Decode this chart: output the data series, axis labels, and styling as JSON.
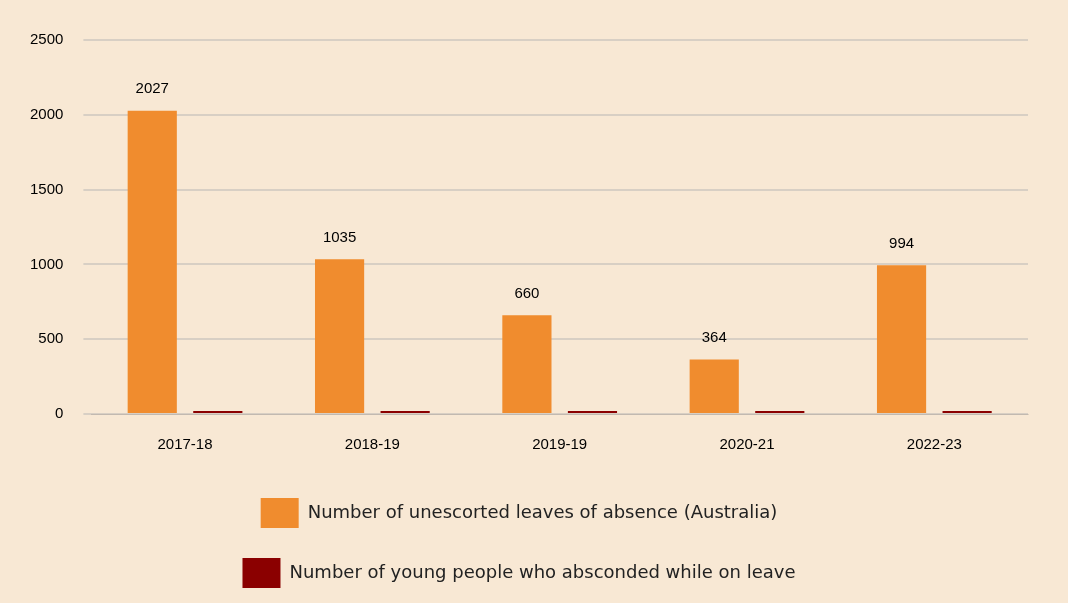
{
  "chart_data": {
    "type": "bar",
    "categories": [
      "2017-18",
      "2018-19",
      "2019-19",
      "2020-21",
      "2022-23"
    ],
    "series": [
      {
        "name": "Number of unescorted leaves of absence (Australia)",
        "color": "#f08c2e",
        "values": [
          2027,
          1035,
          660,
          364,
          994
        ],
        "value_labels": [
          "2027",
          "1035",
          "660",
          "364",
          "994"
        ]
      },
      {
        "name": "Number of young people who absconded while on leave",
        "color": "#8b0000",
        "values": [
          0,
          0,
          0,
          0,
          0
        ]
      }
    ],
    "ylim": [
      0,
      2500
    ],
    "yticks": [
      0,
      500,
      1000,
      1500,
      2000,
      2500
    ],
    "grid": "y",
    "legend": "bottom"
  }
}
